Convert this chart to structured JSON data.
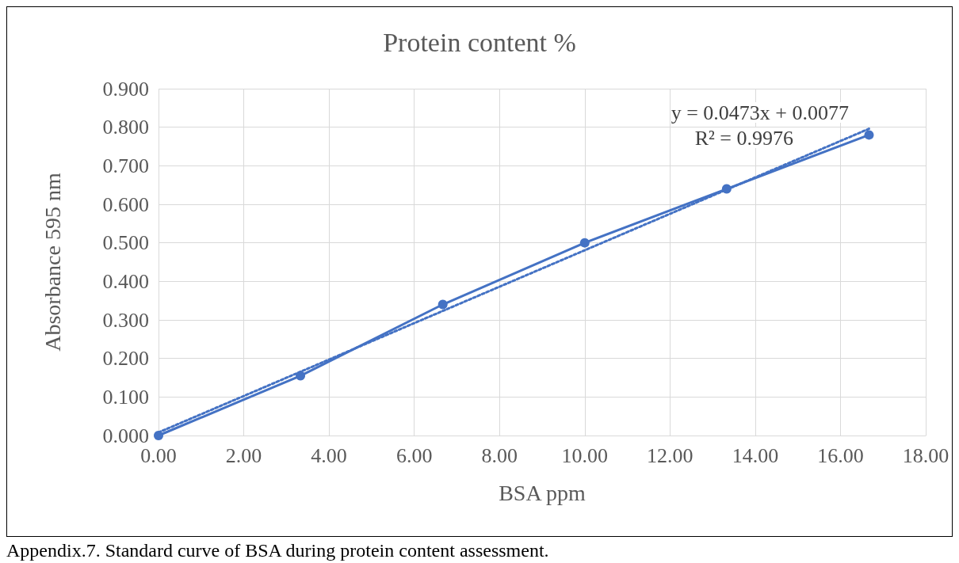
{
  "chart_data": {
    "type": "line",
    "title": "Protein content %",
    "xlabel": "BSA ppm",
    "ylabel": "Absorbance 595 nm",
    "xlim": [
      0,
      18
    ],
    "xticks": [
      {
        "value": 0,
        "label": "0.00"
      },
      {
        "value": 2,
        "label": "2.00"
      },
      {
        "value": 4,
        "label": "4.00"
      },
      {
        "value": 6,
        "label": "6.00"
      },
      {
        "value": 8,
        "label": "8.00"
      },
      {
        "value": 10,
        "label": "10.00"
      },
      {
        "value": 12,
        "label": "12.00"
      },
      {
        "value": 14,
        "label": "14.00"
      },
      {
        "value": 16,
        "label": "16.00"
      },
      {
        "value": 18,
        "label": "18.00"
      }
    ],
    "ylim": [
      0,
      0.9
    ],
    "yticks": [
      {
        "value": 0,
        "label": "0.000"
      },
      {
        "value": 0.1,
        "label": "0.100"
      },
      {
        "value": 0.2,
        "label": "0.200"
      },
      {
        "value": 0.3,
        "label": "0.300"
      },
      {
        "value": 0.4,
        "label": "0.400"
      },
      {
        "value": 0.5,
        "label": "0.500"
      },
      {
        "value": 0.6,
        "label": "0.600"
      },
      {
        "value": 0.7,
        "label": "0.700"
      },
      {
        "value": 0.8,
        "label": "0.800"
      },
      {
        "value": 0.9,
        "label": "0.900"
      }
    ],
    "grid": true,
    "series": [
      {
        "color": "#4472c4",
        "x": [
          0,
          3.33,
          6.67,
          10,
          13.33,
          16.67
        ],
        "values": [
          0,
          0.155,
          0.34,
          0.5,
          0.64,
          0.78
        ],
        "marker": "circle",
        "line_style": "solid"
      },
      {
        "type": "line",
        "color": "#4472c4",
        "x": [
          0,
          16.67
        ],
        "values": [
          0.008,
          0.796
        ],
        "marker": "none",
        "line_style": "dotted"
      }
    ],
    "annotations": [
      "y = 0.0473x + 0.0077",
      "R² = 0.9976",
      "Appendix.7. Standard curve of BSA during protein content assessment."
    ]
  }
}
